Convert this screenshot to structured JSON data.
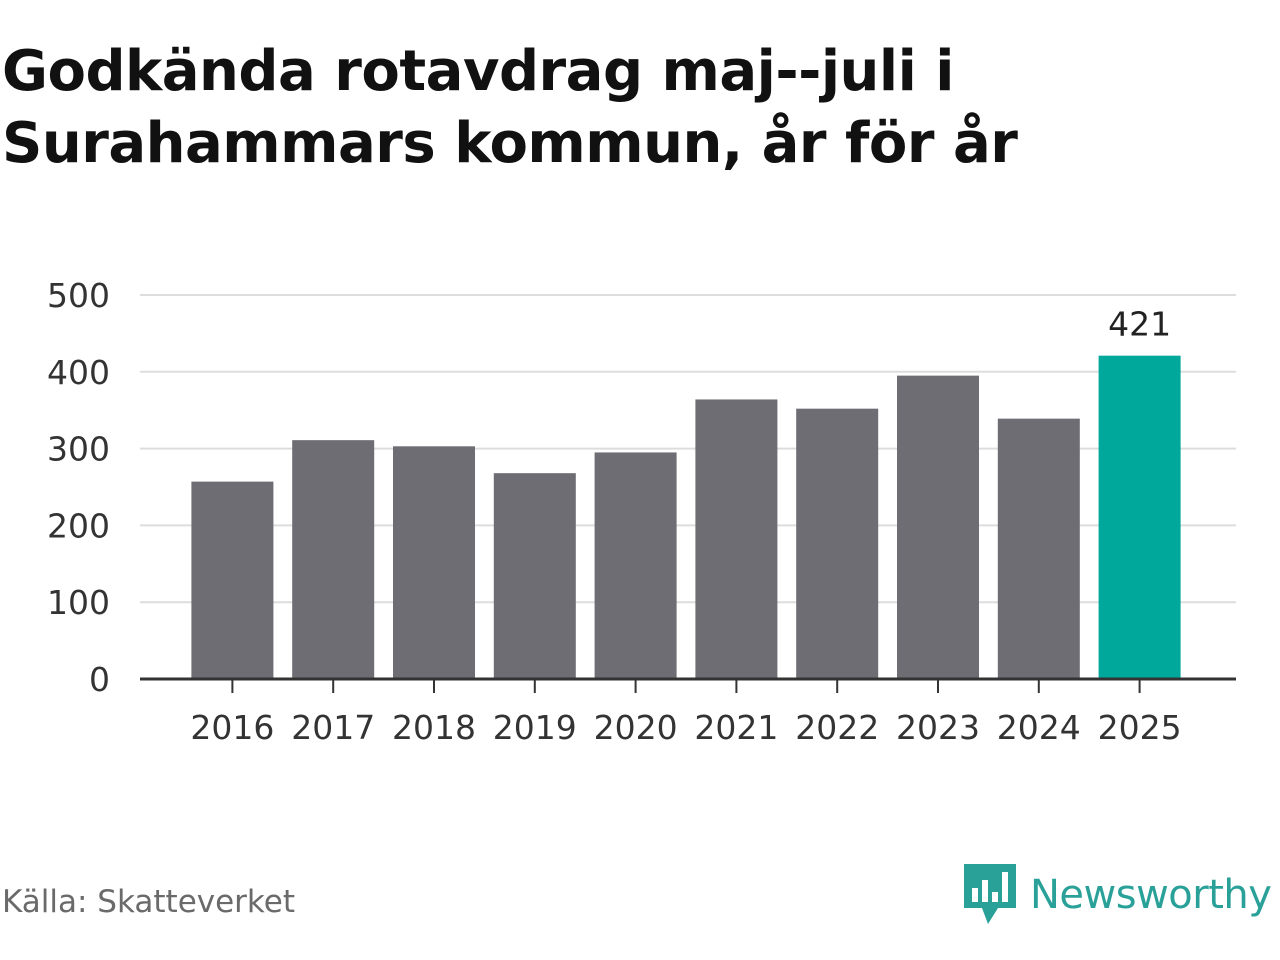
{
  "chart_data": {
    "type": "bar",
    "title": "Godkända rotavdrag maj--juli i Surahammars kommun, år för år",
    "categories": [
      "2016",
      "2017",
      "2018",
      "2019",
      "2020",
      "2021",
      "2022",
      "2023",
      "2024",
      "2025"
    ],
    "values": [
      257,
      311,
      303,
      268,
      295,
      364,
      352,
      395,
      339,
      421
    ],
    "highlight_index": 9,
    "highlight_label": "421",
    "ylim": [
      0,
      500
    ],
    "yticks": [
      0,
      100,
      200,
      300,
      400,
      500
    ],
    "grid": true,
    "colors": {
      "bar": "#6e6d73",
      "highlight": "#00a79b",
      "grid": "#dddddd",
      "axis": "#333333",
      "text": "#333333"
    }
  },
  "footer": {
    "source": "Källa: Skatteverket",
    "brand": "Newsworthy"
  },
  "logo": {
    "icon": "newsworthy-logo-icon",
    "color": "#2aa198"
  }
}
